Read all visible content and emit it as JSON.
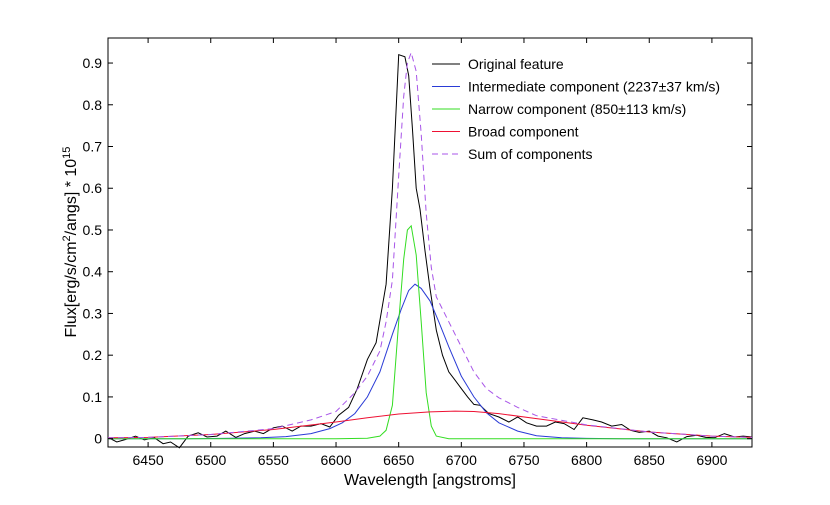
{
  "chart_data": {
    "type": "line",
    "xlabel": "Wavelength [angstroms]",
    "ylabel_main": "Flux[erg/s/cm",
    "ylabel_sup2": "2",
    "ylabel_mid": "/angs] * 10",
    "ylabel_sup15": "15",
    "xlim": [
      6418,
      6932
    ],
    "ylim": [
      -0.02,
      0.96
    ],
    "x_ticks": [
      6450,
      6500,
      6550,
      6600,
      6650,
      6700,
      6750,
      6800,
      6850,
      6900
    ],
    "y_ticks": [
      0,
      0.1,
      0.2,
      0.3,
      0.4,
      0.5,
      0.6,
      0.7,
      0.8,
      0.9
    ],
    "y_tick_labels": [
      "0",
      "0.1",
      "0.2",
      "0.3",
      "0.4",
      "0.5",
      "0.6",
      "0.7",
      "0.8",
      "0.9"
    ],
    "grid": false,
    "legend_position": "top-right",
    "series": [
      {
        "name": "Original feature",
        "color": "#000000",
        "dash": "solid",
        "x": [
          6418,
          6425,
          6432,
          6440,
          6447,
          6455,
          6462,
          6468,
          6475,
          6482,
          6490,
          6497,
          6505,
          6512,
          6520,
          6527,
          6535,
          6542,
          6550,
          6557,
          6565,
          6572,
          6580,
          6588,
          6595,
          6602,
          6610,
          6617,
          6625,
          6632,
          6640,
          6645,
          6650,
          6655,
          6658,
          6661,
          6664,
          6667,
          6671,
          6675,
          6680,
          6685,
          6690,
          6695,
          6700,
          6705,
          6710,
          6715,
          6722,
          6730,
          6738,
          6745,
          6752,
          6760,
          6768,
          6775,
          6782,
          6790,
          6797,
          6805,
          6812,
          6820,
          6828,
          6835,
          6842,
          6850,
          6857,
          6864,
          6872,
          6880,
          6888,
          6895,
          6902,
          6910,
          6918,
          6925,
          6932
        ],
        "y": [
          0.003,
          -0.008,
          -0.002,
          0.006,
          -0.003,
          0.002,
          -0.012,
          -0.008,
          -0.022,
          0.006,
          0.014,
          0.004,
          0.006,
          0.018,
          0.003,
          0.012,
          0.018,
          0.012,
          0.026,
          0.03,
          0.018,
          0.03,
          0.03,
          0.036,
          0.028,
          0.056,
          0.075,
          0.12,
          0.19,
          0.23,
          0.37,
          0.6,
          0.92,
          0.915,
          0.87,
          0.74,
          0.6,
          0.55,
          0.45,
          0.36,
          0.26,
          0.2,
          0.16,
          0.14,
          0.12,
          0.1,
          0.082,
          0.08,
          0.06,
          0.052,
          0.04,
          0.052,
          0.038,
          0.03,
          0.03,
          0.04,
          0.036,
          0.022,
          0.05,
          0.045,
          0.04,
          0.03,
          0.034,
          0.02,
          0.015,
          0.018,
          0.006,
          0.002,
          -0.008,
          0.005,
          0.008,
          0.003,
          0.002,
          0.012,
          0.004,
          0.006,
          0.004
        ]
      },
      {
        "name": "Intermediate component (2237±37 km/s)",
        "color": "#2a3bd6",
        "dash": "solid",
        "x": [
          6418,
          6450,
          6480,
          6510,
          6540,
          6560,
          6580,
          6595,
          6605,
          6615,
          6625,
          6635,
          6645,
          6652,
          6658,
          6663,
          6668,
          6675,
          6682,
          6690,
          6700,
          6710,
          6720,
          6730,
          6745,
          6760,
          6780,
          6800,
          6830,
          6860,
          6900,
          6932
        ],
        "y": [
          0,
          0,
          0,
          0.0005,
          0.002,
          0.005,
          0.012,
          0.024,
          0.038,
          0.06,
          0.1,
          0.16,
          0.25,
          0.31,
          0.355,
          0.37,
          0.36,
          0.33,
          0.28,
          0.22,
          0.15,
          0.1,
          0.062,
          0.038,
          0.018,
          0.007,
          0.002,
          0.0005,
          0,
          0,
          0,
          0
        ]
      },
      {
        "name": "Narrow component (850±113 km/s)",
        "color": "#33dd22",
        "dash": "solid",
        "x": [
          6418,
          6600,
          6625,
          6635,
          6640,
          6645,
          6650,
          6654,
          6657,
          6660,
          6664,
          6668,
          6672,
          6676,
          6680,
          6690,
          6932
        ],
        "y": [
          0,
          0,
          0.001,
          0.006,
          0.02,
          0.08,
          0.28,
          0.43,
          0.5,
          0.51,
          0.44,
          0.28,
          0.11,
          0.03,
          0.006,
          0,
          0
        ]
      },
      {
        "name": "Broad component",
        "color": "#ee1133",
        "dash": "solid",
        "x": [
          6418,
          6450,
          6500,
          6550,
          6600,
          6625,
          6650,
          6675,
          6695,
          6710,
          6730,
          6760,
          6800,
          6850,
          6900,
          6932
        ],
        "y": [
          0.002,
          0.003,
          0.01,
          0.022,
          0.04,
          0.05,
          0.059,
          0.064,
          0.066,
          0.065,
          0.06,
          0.048,
          0.032,
          0.016,
          0.006,
          0.003
        ]
      },
      {
        "name": "Sum of components",
        "color": "#a855e8",
        "dash": "dashed",
        "x": [
          6418,
          6450,
          6500,
          6550,
          6580,
          6600,
          6615,
          6625,
          6635,
          6640,
          6645,
          6650,
          6654,
          6657,
          6660,
          6664,
          6668,
          6672,
          6676,
          6680,
          6690,
          6700,
          6710,
          6720,
          6730,
          6745,
          6760,
          6800,
          6850,
          6900,
          6932
        ],
        "y": [
          0.002,
          0.003,
          0.01,
          0.024,
          0.045,
          0.065,
          0.11,
          0.15,
          0.21,
          0.28,
          0.38,
          0.63,
          0.82,
          0.9,
          0.925,
          0.88,
          0.73,
          0.54,
          0.41,
          0.34,
          0.28,
          0.22,
          0.16,
          0.12,
          0.098,
          0.075,
          0.055,
          0.033,
          0.016,
          0.006,
          0.003
        ]
      }
    ]
  }
}
